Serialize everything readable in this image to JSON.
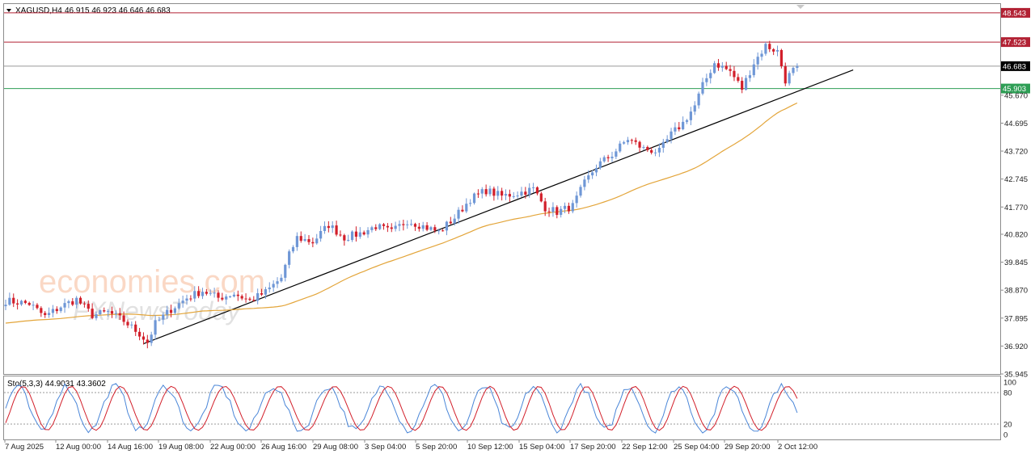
{
  "header": {
    "symbol": "XAGUSD,H4",
    "ohlc": "46.915 46.923 46.646 46.683",
    "indicator": "Sto(5,3,3) 44.9031 43.3602"
  },
  "watermark": {
    "line1": "economies.com",
    "line2": "FXNewsToday"
  },
  "colors": {
    "bull": "#6f97d6",
    "bear": "#d21f2a",
    "ma": "#e3a53a",
    "trend": "#000000",
    "resistance": "#b22234",
    "support": "#2e9e55",
    "current": "#9a9a9a",
    "stoch_main": "#4a86d8",
    "stoch_signal": "#d21f2a"
  },
  "chart_data": [
    {
      "type": "candlestick",
      "y_ticks": [
        "35.945",
        "36.920",
        "37.895",
        "38.870",
        "39.845",
        "40.820",
        "41.770",
        "42.745",
        "43.720",
        "44.695",
        "45.670"
      ],
      "ylim": [
        35.945,
        48.85
      ],
      "x_labels": [
        "7 Aug 2025",
        "12 Aug 00:00",
        "14 Aug 16:00",
        "19 Aug 08:00",
        "22 Aug 00:00",
        "26 Aug 16:00",
        "29 Aug 08:00",
        "3 Sep 04:00",
        "5 Sep 20:00",
        "10 Sep 12:00",
        "15 Sep 04:00",
        "17 Sep 20:00",
        "22 Sep 12:00",
        "25 Sep 04:00",
        "29 Sep 20:00",
        "2 Oct 12:00"
      ],
      "close_path": [
        [
          0,
          38.5
        ],
        [
          6,
          38.4
        ],
        [
          10,
          37.95
        ],
        [
          14,
          38.3
        ],
        [
          18,
          38.55
        ],
        [
          22,
          38.0
        ],
        [
          26,
          38.1
        ],
        [
          30,
          37.8
        ],
        [
          34,
          37.35
        ],
        [
          36,
          37.05
        ],
        [
          38,
          37.7
        ],
        [
          42,
          38.2
        ],
        [
          46,
          38.6
        ],
        [
          50,
          38.85
        ],
        [
          54,
          38.6
        ],
        [
          58,
          38.75
        ],
        [
          62,
          38.5
        ],
        [
          66,
          38.8
        ],
        [
          70,
          39.3
        ],
        [
          72,
          40.1
        ],
        [
          74,
          40.7
        ],
        [
          78,
          40.55
        ],
        [
          82,
          41.15
        ],
        [
          86,
          40.7
        ],
        [
          90,
          40.85
        ],
        [
          94,
          41.1
        ],
        [
          98,
          40.9
        ],
        [
          102,
          41.3
        ],
        [
          106,
          41.1
        ],
        [
          110,
          40.9
        ],
        [
          114,
          41.4
        ],
        [
          118,
          42.05
        ],
        [
          122,
          42.35
        ],
        [
          126,
          42.15
        ],
        [
          130,
          42.25
        ],
        [
          134,
          42.4
        ],
        [
          137,
          41.75
        ],
        [
          140,
          41.6
        ],
        [
          144,
          41.8
        ],
        [
          147,
          42.6
        ],
        [
          150,
          43.2
        ],
        [
          154,
          43.6
        ],
        [
          158,
          44.15
        ],
        [
          162,
          43.8
        ],
        [
          166,
          43.7
        ],
        [
          169,
          44.3
        ],
        [
          172,
          44.7
        ],
        [
          175,
          45.3
        ],
        [
          177,
          46.0
        ],
        [
          180,
          46.8
        ],
        [
          184,
          46.5
        ],
        [
          187,
          45.9
        ],
        [
          190,
          46.8
        ],
        [
          193,
          47.4
        ],
        [
          196,
          47.2
        ],
        [
          198,
          46.2
        ],
        [
          201,
          46.7
        ]
      ],
      "bar_count": 202,
      "ma_period": 50,
      "ma_start": [
        38.85,
        37.72
      ],
      "last_price": 46.683,
      "levels": [
        {
          "name": "resistance-2",
          "value": 48.543,
          "label": "48.543"
        },
        {
          "name": "resistance-1",
          "value": 47.523,
          "label": "47.523"
        },
        {
          "name": "support-1",
          "value": 45.903,
          "label": "45.903"
        }
      ],
      "trendline": {
        "from": [
          35,
          37.0
        ],
        "to": [
          168,
          44.05
        ]
      }
    },
    {
      "type": "line",
      "name": "Stochastic",
      "ylim": [
        0,
        100
      ],
      "y_ticks": [
        "100",
        "80",
        "20",
        "0"
      ],
      "levels": [
        80,
        20
      ],
      "period": 13,
      "amplitude": 42
    }
  ]
}
